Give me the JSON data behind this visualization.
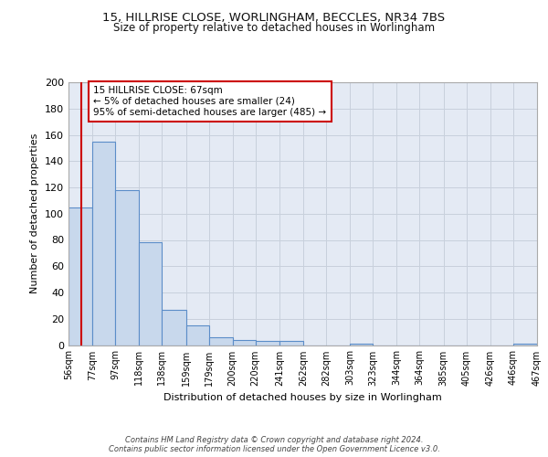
{
  "title_line1": "15, HILLRISE CLOSE, WORLINGHAM, BECCLES, NR34 7BS",
  "title_line2": "Size of property relative to detached houses in Worlingham",
  "xlabel": "Distribution of detached houses by size in Worlingham",
  "ylabel": "Number of detached properties",
  "bin_labels": [
    "56sqm",
    "77sqm",
    "97sqm",
    "118sqm",
    "138sqm",
    "159sqm",
    "179sqm",
    "200sqm",
    "220sqm",
    "241sqm",
    "262sqm",
    "282sqm",
    "303sqm",
    "323sqm",
    "344sqm",
    "364sqm",
    "385sqm",
    "405sqm",
    "426sqm",
    "446sqm",
    "467sqm"
  ],
  "bin_edges": [
    56,
    77,
    97,
    118,
    138,
    159,
    179,
    200,
    220,
    241,
    262,
    282,
    303,
    323,
    344,
    364,
    385,
    405,
    426,
    446,
    467
  ],
  "bar_values": [
    105,
    155,
    118,
    78,
    27,
    15,
    6,
    4,
    3,
    3,
    0,
    0,
    1,
    0,
    0,
    0,
    0,
    0,
    0,
    1
  ],
  "bar_facecolor": "#c8d8ec",
  "bar_edgecolor": "#5b8dc8",
  "grid_color": "#c8d0dc",
  "bg_color": "#e4eaf4",
  "red_line_x": 67,
  "annotation_text": "15 HILLRISE CLOSE: 67sqm\n← 5% of detached houses are smaller (24)\n95% of semi-detached houses are larger (485) →",
  "annotation_box_color": "#ffffff",
  "annotation_border_color": "#cc0000",
  "annotation_text_color": "#000000",
  "red_line_color": "#cc0000",
  "ylim": [
    0,
    200
  ],
  "yticks": [
    0,
    20,
    40,
    60,
    80,
    100,
    120,
    140,
    160,
    180,
    200
  ],
  "footer": "Contains HM Land Registry data © Crown copyright and database right 2024.\nContains public sector information licensed under the Open Government Licence v3.0."
}
